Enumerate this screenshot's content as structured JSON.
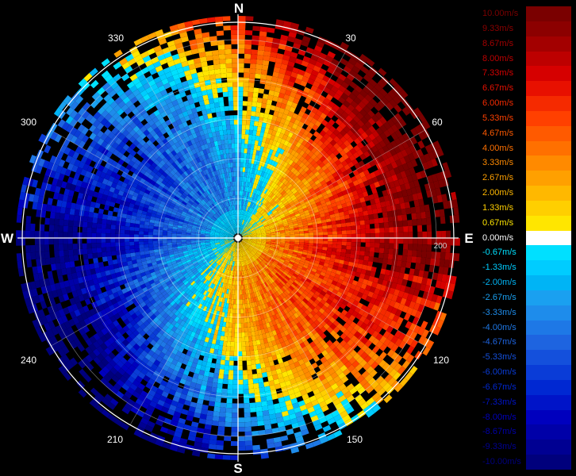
{
  "radar": {
    "compass": {
      "north": "N",
      "east": "E",
      "south": "S",
      "west": "W"
    },
    "degree_labels": [
      "30",
      "60",
      "120",
      "150",
      "210",
      "240",
      "300",
      "330"
    ],
    "range_label": "200"
  },
  "legend": {
    "entries": [
      {
        "label": "10.00m/s",
        "color": "#7a0000"
      },
      {
        "label": "9.33m/s",
        "color": "#8c0000"
      },
      {
        "label": "8.67m/s",
        "color": "#a30000"
      },
      {
        "label": "8.00m/s",
        "color": "#bd0000"
      },
      {
        "label": "7.33m/s",
        "color": "#d60000"
      },
      {
        "label": "6.67m/s",
        "color": "#e81000"
      },
      {
        "label": "6.00m/s",
        "color": "#f52a00"
      },
      {
        "label": "5.33m/s",
        "color": "#ff4000"
      },
      {
        "label": "4.67m/s",
        "color": "#ff5a00"
      },
      {
        "label": "4.00m/s",
        "color": "#ff7000"
      },
      {
        "label": "3.33m/s",
        "color": "#ff8a00"
      },
      {
        "label": "2.67m/s",
        "color": "#ffa000"
      },
      {
        "label": "2.00m/s",
        "color": "#ffb800"
      },
      {
        "label": "1.33m/s",
        "color": "#ffcf00"
      },
      {
        "label": "0.67m/s",
        "color": "#ffe600"
      },
      {
        "label": "0.00m/s",
        "color": "#ffffff"
      },
      {
        "label": "-0.67m/s",
        "color": "#00e0ff"
      },
      {
        "label": "-1.33m/s",
        "color": "#00ccff"
      },
      {
        "label": "-2.00m/s",
        "color": "#00b4f5"
      },
      {
        "label": "-2.67m/s",
        "color": "#1aa0f0"
      },
      {
        "label": "-3.33m/s",
        "color": "#1e8ceb"
      },
      {
        "label": "-4.00m/s",
        "color": "#1e78e6"
      },
      {
        "label": "-4.67m/s",
        "color": "#1e64e0"
      },
      {
        "label": "-5.33m/s",
        "color": "#1450dc"
      },
      {
        "label": "-6.00m/s",
        "color": "#0a3cd7"
      },
      {
        "label": "-6.67m/s",
        "color": "#0028d2"
      },
      {
        "label": "-7.33m/s",
        "color": "#0014c8"
      },
      {
        "label": "-8.00m/s",
        "color": "#0000be"
      },
      {
        "label": "-8.67m/s",
        "color": "#0000a8"
      },
      {
        "label": "-9.33m/s",
        "color": "#000092"
      },
      {
        "label": "-10.00m/s",
        "color": "#00007c"
      }
    ]
  }
}
